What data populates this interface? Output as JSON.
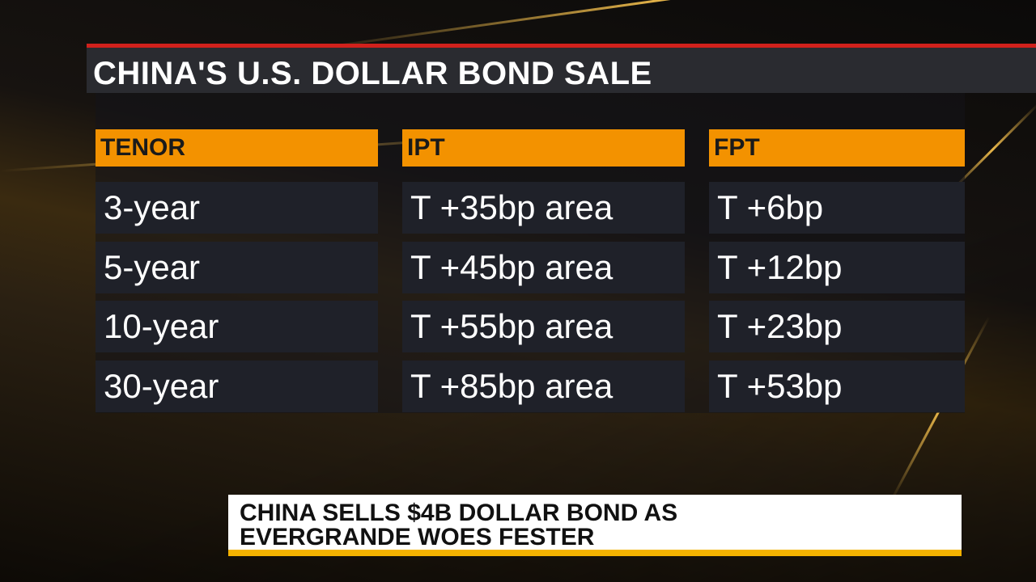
{
  "header": {
    "title": "CHINA'S U.S. DOLLAR BOND SALE"
  },
  "table": {
    "columns": [
      "TENOR",
      "IPT",
      "FPT"
    ],
    "rows": [
      [
        "3-year",
        "T +35bp area",
        "T +6bp"
      ],
      [
        "5-year",
        "T +45bp area",
        "T +12bp"
      ],
      [
        "10-year",
        "T +55bp area",
        "T +23bp"
      ],
      [
        "30-year",
        "T +85bp area",
        "T +53bp"
      ]
    ]
  },
  "caption": {
    "lines": [
      "CHINA SELLS $4B DOLLAR BOND AS",
      "EVERGRANDE WOES FESTER"
    ]
  }
}
